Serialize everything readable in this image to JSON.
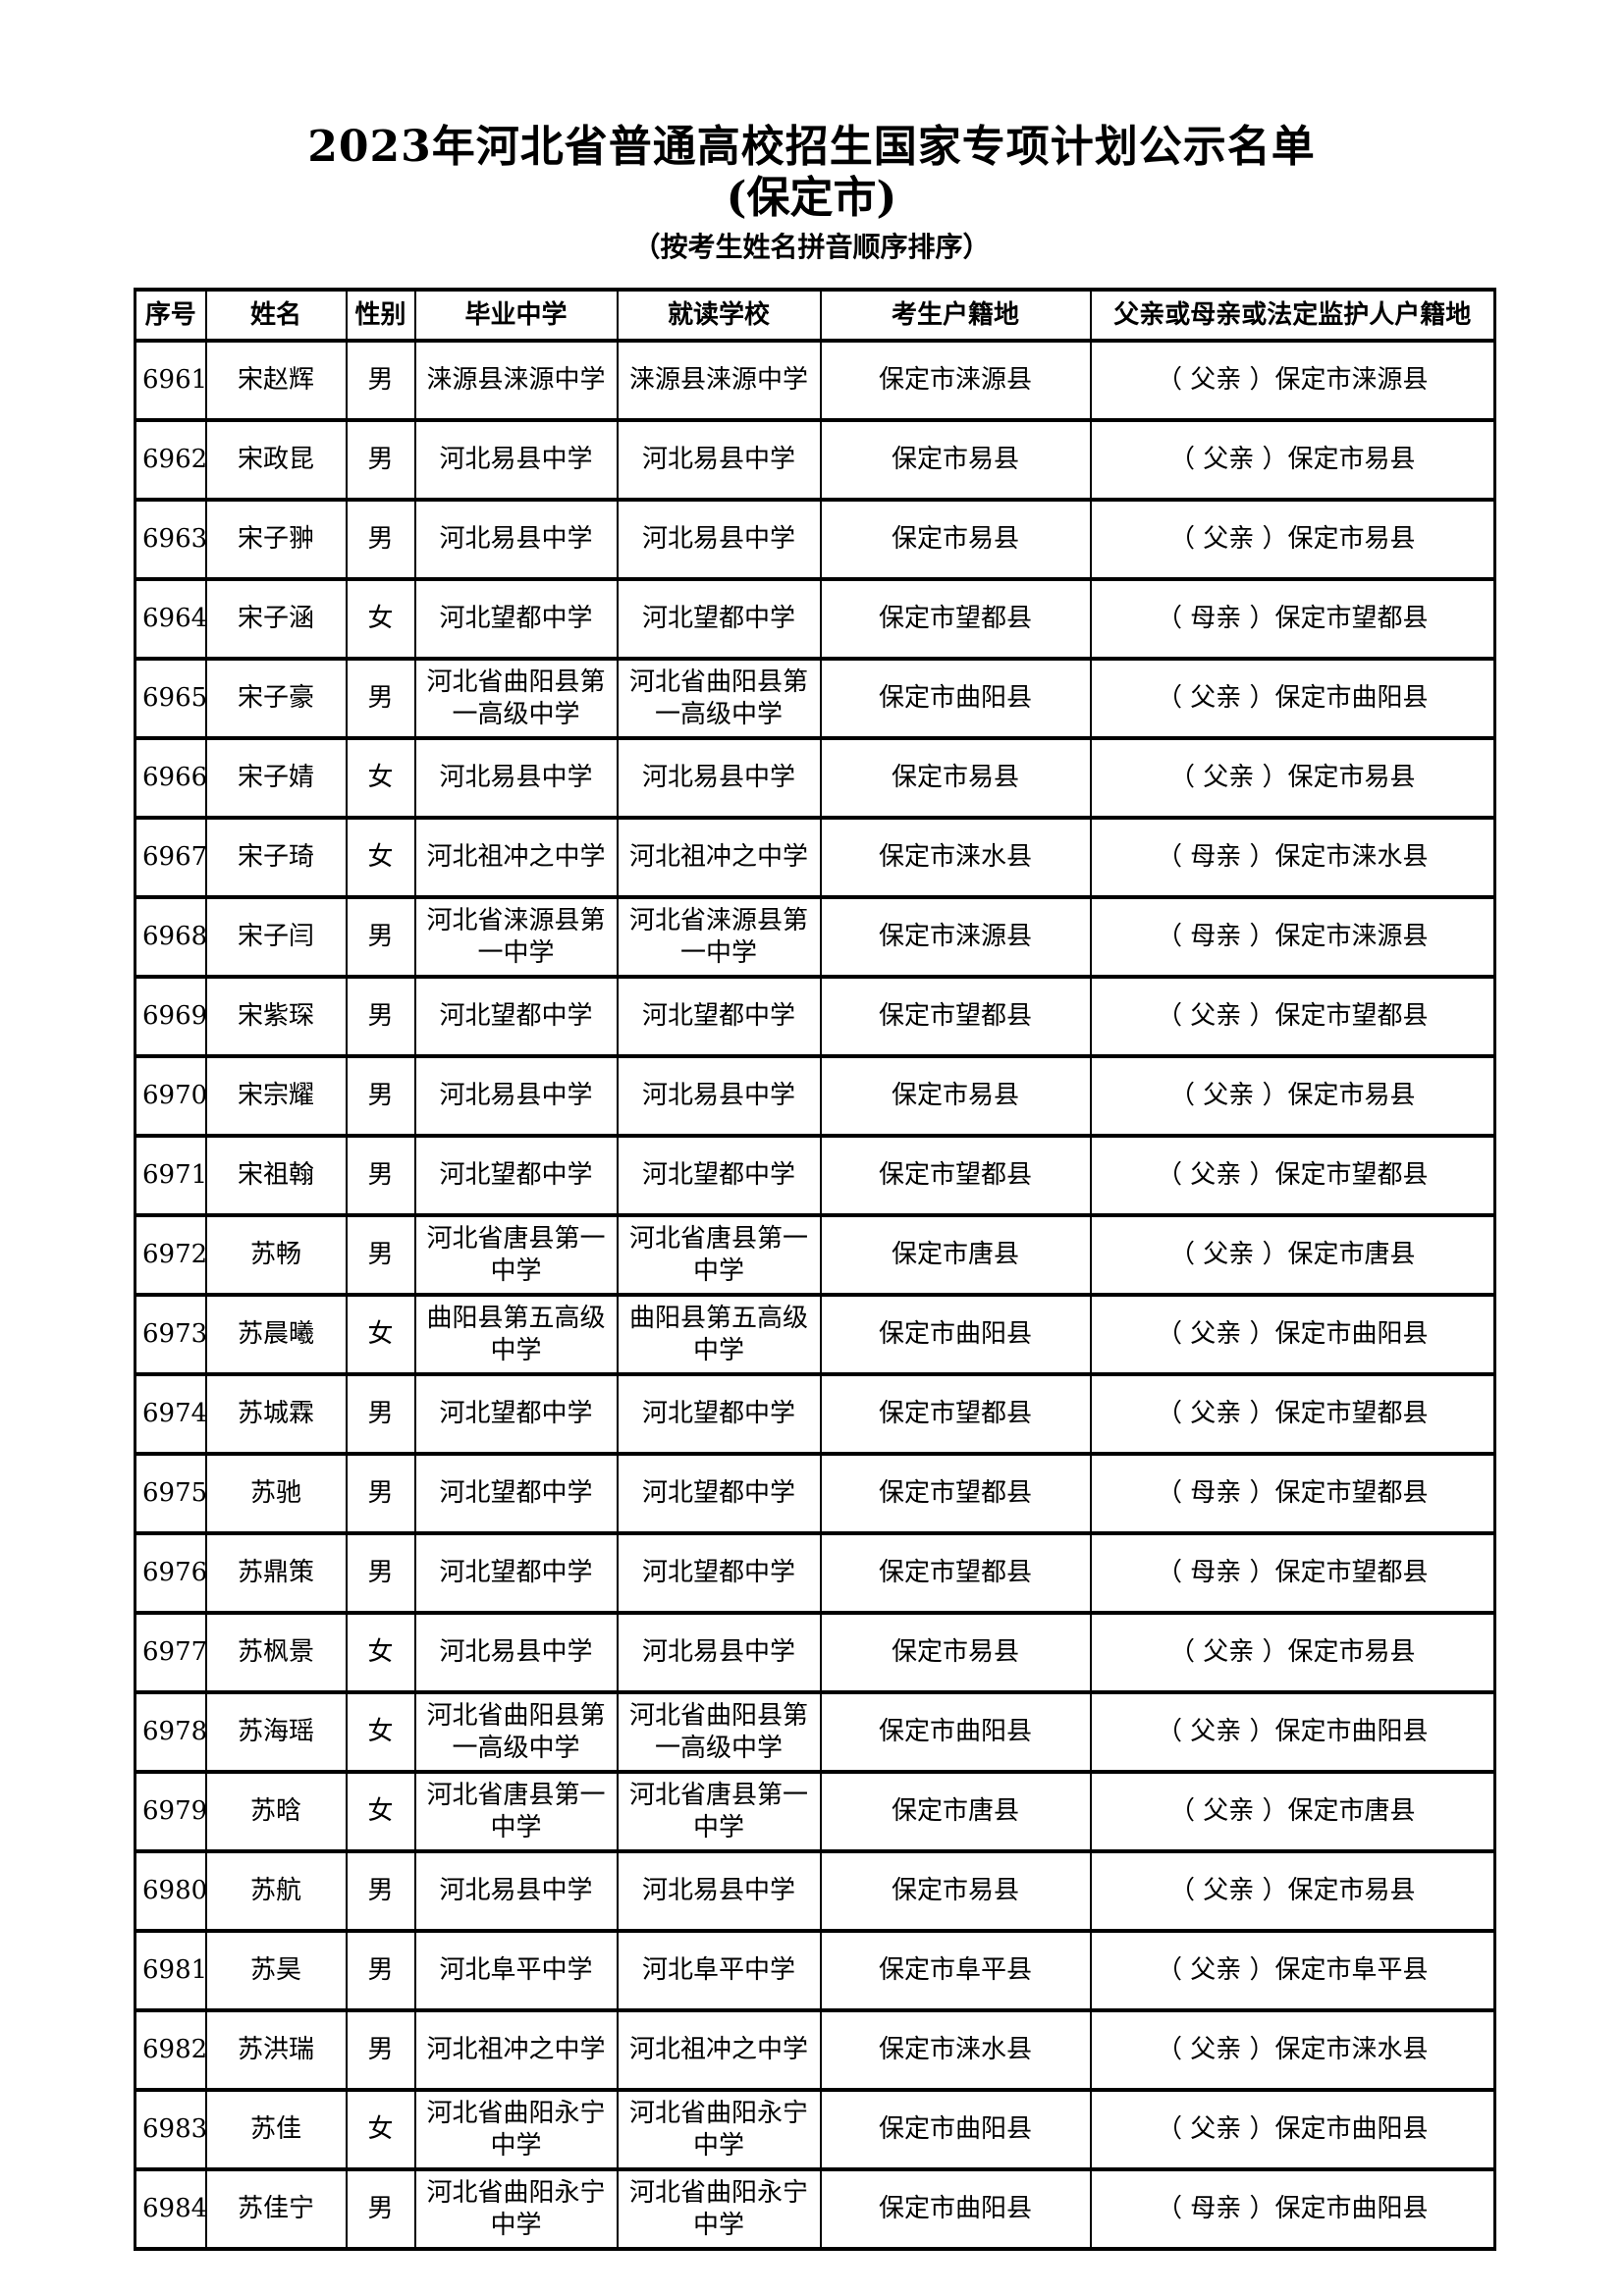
{
  "page": {
    "title": "2023年河北省普通高校招生国家专项计划公示名单",
    "subtitle": "(保定市)",
    "note": "（按考生姓名拼音顺序排序）"
  },
  "table": {
    "headers": [
      "序号",
      "姓名",
      "性别",
      "毕业中学",
      "就读学校",
      "考生户籍地",
      "父亲或母亲或法定监护人户籍地"
    ],
    "rows": [
      [
        "6961",
        "宋赵辉",
        "男",
        "涞源县涞源中学",
        "涞源县涞源中学",
        "保定市涞源县",
        "（ 父亲 ）保定市涞源县"
      ],
      [
        "6962",
        "宋政昆",
        "男",
        "河北易县中学",
        "河北易县中学",
        "保定市易县",
        "（ 父亲 ）保定市易县"
      ],
      [
        "6963",
        "宋子翀",
        "男",
        "河北易县中学",
        "河北易县中学",
        "保定市易县",
        "（ 父亲 ）保定市易县"
      ],
      [
        "6964",
        "宋子涵",
        "女",
        "河北望都中学",
        "河北望都中学",
        "保定市望都县",
        "（ 母亲 ）保定市望都县"
      ],
      [
        "6965",
        "宋子豪",
        "男",
        "河北省曲阳县第\n一高级中学",
        "河北省曲阳县第\n一高级中学",
        "保定市曲阳县",
        "（ 父亲 ）保定市曲阳县"
      ],
      [
        "6966",
        "宋子婧",
        "女",
        "河北易县中学",
        "河北易县中学",
        "保定市易县",
        "（ 父亲 ）保定市易县"
      ],
      [
        "6967",
        "宋子琦",
        "女",
        "河北祖冲之中学",
        "河北祖冲之中学",
        "保定市涞水县",
        "（ 母亲 ）保定市涞水县"
      ],
      [
        "6968",
        "宋子闫",
        "男",
        "河北省涞源县第\n一中学",
        "河北省涞源县第\n一中学",
        "保定市涞源县",
        "（ 母亲 ）保定市涞源县"
      ],
      [
        "6969",
        "宋紫琛",
        "男",
        "河北望都中学",
        "河北望都中学",
        "保定市望都县",
        "（ 父亲 ）保定市望都县"
      ],
      [
        "6970",
        "宋宗耀",
        "男",
        "河北易县中学",
        "河北易县中学",
        "保定市易县",
        "（ 父亲 ）保定市易县"
      ],
      [
        "6971",
        "宋祖翰",
        "男",
        "河北望都中学",
        "河北望都中学",
        "保定市望都县",
        "（ 父亲 ）保定市望都县"
      ],
      [
        "6972",
        "苏畅",
        "男",
        "河北省唐县第一\n中学",
        "河北省唐县第一\n中学",
        "保定市唐县",
        "（ 父亲 ）保定市唐县"
      ],
      [
        "6973",
        "苏晨曦",
        "女",
        "曲阳县第五高级\n中学",
        "曲阳县第五高级\n中学",
        "保定市曲阳县",
        "（ 父亲 ）保定市曲阳县"
      ],
      [
        "6974",
        "苏城霖",
        "男",
        "河北望都中学",
        "河北望都中学",
        "保定市望都县",
        "（ 父亲 ）保定市望都县"
      ],
      [
        "6975",
        "苏驰",
        "男",
        "河北望都中学",
        "河北望都中学",
        "保定市望都县",
        "（ 母亲 ）保定市望都县"
      ],
      [
        "6976",
        "苏鼎策",
        "男",
        "河北望都中学",
        "河北望都中学",
        "保定市望都县",
        "（ 母亲 ）保定市望都县"
      ],
      [
        "6977",
        "苏枫景",
        "女",
        "河北易县中学",
        "河北易县中学",
        "保定市易县",
        "（ 父亲 ）保定市易县"
      ],
      [
        "6978",
        "苏海瑶",
        "女",
        "河北省曲阳县第\n一高级中学",
        "河北省曲阳县第\n一高级中学",
        "保定市曲阳县",
        "（ 父亲 ）保定市曲阳县"
      ],
      [
        "6979",
        "苏晗",
        "女",
        "河北省唐县第一\n中学",
        "河北省唐县第一\n中学",
        "保定市唐县",
        "（ 父亲 ）保定市唐县"
      ],
      [
        "6980",
        "苏航",
        "男",
        "河北易县中学",
        "河北易县中学",
        "保定市易县",
        "（ 父亲 ）保定市易县"
      ],
      [
        "6981",
        "苏昊",
        "男",
        "河北阜平中学",
        "河北阜平中学",
        "保定市阜平县",
        "（ 父亲 ）保定市阜平县"
      ],
      [
        "6982",
        "苏洪瑞",
        "男",
        "河北祖冲之中学",
        "河北祖冲之中学",
        "保定市涞水县",
        "（ 父亲 ）保定市涞水县"
      ],
      [
        "6983",
        "苏佳",
        "女",
        "河北省曲阳永宁\n中学",
        "河北省曲阳永宁\n中学",
        "保定市曲阳县",
        "（ 父亲 ）保定市曲阳县"
      ],
      [
        "6984",
        "苏佳宁",
        "男",
        "河北省曲阳永宁\n中学",
        "河北省曲阳永宁\n中学",
        "保定市曲阳县",
        "（ 母亲 ）保定市曲阳县"
      ]
    ]
  }
}
